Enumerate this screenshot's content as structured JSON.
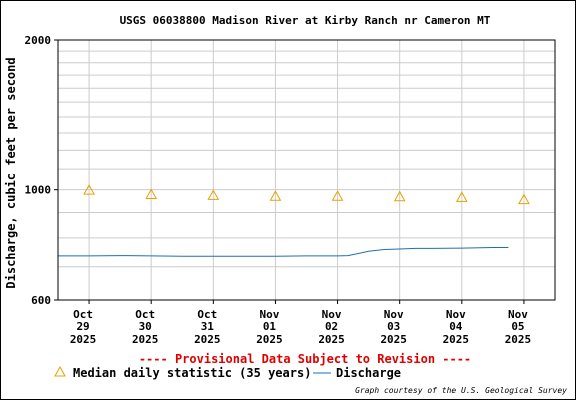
{
  "chart_data": {
    "type": "line",
    "title": "USGS 06038800 Madison River at Kirby Ranch nr Cameron MT",
    "ylabel": "Discharge, cubic feet per second",
    "xlabel": "",
    "y_scale": "log",
    "ylim": [
      600,
      2000
    ],
    "y_ticks": [
      {
        "value": 600,
        "label": "600"
      },
      {
        "value": 1000,
        "label": "1000"
      },
      {
        "value": 2000,
        "label": "2000"
      }
    ],
    "x_range": [
      "2025-10-28T12:00",
      "2025-11-05T12:00"
    ],
    "x_ticks": [
      {
        "date": "2025-10-29T00:00",
        "l1": "Oct",
        "l2": "29",
        "l3": "2025"
      },
      {
        "date": "2025-10-30T00:00",
        "l1": "Oct",
        "l2": "30",
        "l3": "2025"
      },
      {
        "date": "2025-10-31T00:00",
        "l1": "Oct",
        "l2": "31",
        "l3": "2025"
      },
      {
        "date": "2025-11-01T00:00",
        "l1": "Nov",
        "l2": "01",
        "l3": "2025"
      },
      {
        "date": "2025-11-02T00:00",
        "l1": "Nov",
        "l2": "02",
        "l3": "2025"
      },
      {
        "date": "2025-11-03T00:00",
        "l1": "Nov",
        "l2": "03",
        "l3": "2025"
      },
      {
        "date": "2025-11-04T00:00",
        "l1": "Nov",
        "l2": "04",
        "l3": "2025"
      },
      {
        "date": "2025-11-05T00:00",
        "l1": "Nov",
        "l2": "05",
        "l3": "2025"
      }
    ],
    "grid": true,
    "series": [
      {
        "name": "Median daily statistic (35 years)",
        "kind": "triangle-marker",
        "color": "#e8a000",
        "points": [
          {
            "x": "2025-10-29T00:00",
            "y": 998
          },
          {
            "x": "2025-10-30T00:00",
            "y": 978
          },
          {
            "x": "2025-10-31T00:00",
            "y": 974
          },
          {
            "x": "2025-11-01T00:00",
            "y": 970
          },
          {
            "x": "2025-11-02T00:00",
            "y": 970
          },
          {
            "x": "2025-11-03T00:00",
            "y": 968
          },
          {
            "x": "2025-11-04T00:00",
            "y": 965
          },
          {
            "x": "2025-11-05T00:00",
            "y": 955
          }
        ]
      },
      {
        "name": "Discharge",
        "kind": "line",
        "color": "#1f6fb2",
        "points": [
          {
            "x": "2025-10-28T12:00",
            "y": 736
          },
          {
            "x": "2025-10-29T00:00",
            "y": 736
          },
          {
            "x": "2025-10-29T12:00",
            "y": 737
          },
          {
            "x": "2025-10-30T00:00",
            "y": 736
          },
          {
            "x": "2025-10-30T12:00",
            "y": 735
          },
          {
            "x": "2025-10-31T00:00",
            "y": 735
          },
          {
            "x": "2025-10-31T12:00",
            "y": 735
          },
          {
            "x": "2025-11-01T00:00",
            "y": 735
          },
          {
            "x": "2025-11-01T12:00",
            "y": 736
          },
          {
            "x": "2025-11-02T00:00",
            "y": 736
          },
          {
            "x": "2025-11-02T04:00",
            "y": 737
          },
          {
            "x": "2025-11-02T08:00",
            "y": 744
          },
          {
            "x": "2025-11-02T12:00",
            "y": 752
          },
          {
            "x": "2025-11-02T18:00",
            "y": 758
          },
          {
            "x": "2025-11-03T00:00",
            "y": 760
          },
          {
            "x": "2025-11-03T06:00",
            "y": 762
          },
          {
            "x": "2025-11-03T12:00",
            "y": 762
          },
          {
            "x": "2025-11-04T00:00",
            "y": 763
          },
          {
            "x": "2025-11-04T12:00",
            "y": 765
          },
          {
            "x": "2025-11-04T18:00",
            "y": 765
          }
        ]
      }
    ],
    "notice": "---- Provisional Data Subject to Revision ----",
    "credit": "Graph courtesy of the U.S. Geological Survey"
  }
}
